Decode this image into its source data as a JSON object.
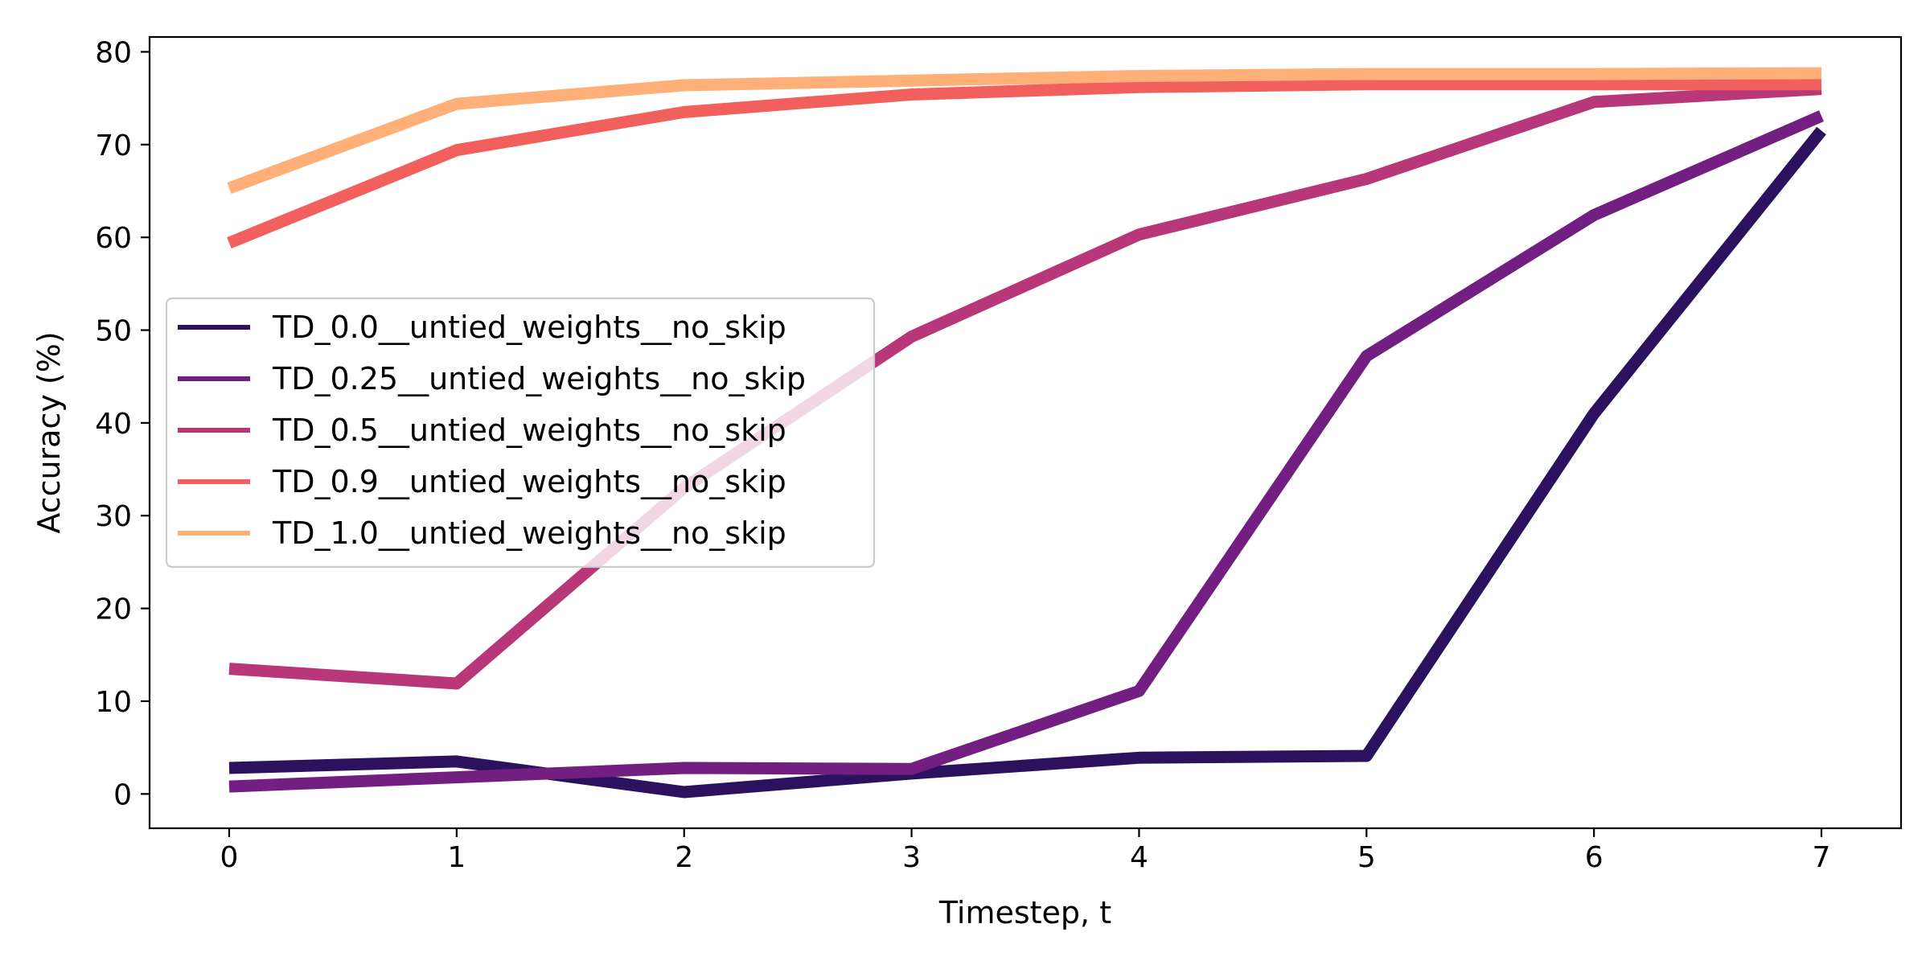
{
  "chart_data": {
    "type": "line",
    "title": "",
    "xlabel": "Timestep, t",
    "ylabel": "Accuracy (%)",
    "xlim": [
      -0.35,
      7.35
    ],
    "ylim": [
      -3.7,
      81.6
    ],
    "xticks": [
      "0",
      "1",
      "2",
      "3",
      "4",
      "5",
      "6",
      "7"
    ],
    "yticks": [
      "0",
      "10",
      "20",
      "30",
      "40",
      "50",
      "60",
      "70",
      "80"
    ],
    "grid": false,
    "legend_position": "center-left",
    "x": [
      0,
      1,
      2,
      3,
      4,
      5,
      6,
      7
    ],
    "series": [
      {
        "name": "TD_0.0__untied_weights__no_skip",
        "color": "#2c115f",
        "values": [
          2.8,
          3.5,
          0.2,
          2.2,
          3.9,
          4.1,
          41.0,
          71.5
        ]
      },
      {
        "name": "TD_0.25__untied_weights__no_skip",
        "color": "#721f81",
        "values": [
          0.8,
          1.8,
          2.8,
          2.7,
          11.1,
          47.2,
          62.4,
          73.1
        ]
      },
      {
        "name": "TD_0.5__untied_weights__no_skip",
        "color": "#b73779",
        "values": [
          13.5,
          11.9,
          33.0,
          49.3,
          60.3,
          66.3,
          74.6,
          76.0
        ]
      },
      {
        "name": "TD_0.9__untied_weights__no_skip",
        "color": "#f1605d",
        "values": [
          59.4,
          69.4,
          73.5,
          75.4,
          76.2,
          76.5,
          76.5,
          76.5
        ]
      },
      {
        "name": "TD_1.0__untied_weights__no_skip",
        "color": "#feb078",
        "values": [
          65.3,
          74.4,
          76.4,
          76.9,
          77.4,
          77.6,
          77.6,
          77.7
        ]
      }
    ]
  }
}
